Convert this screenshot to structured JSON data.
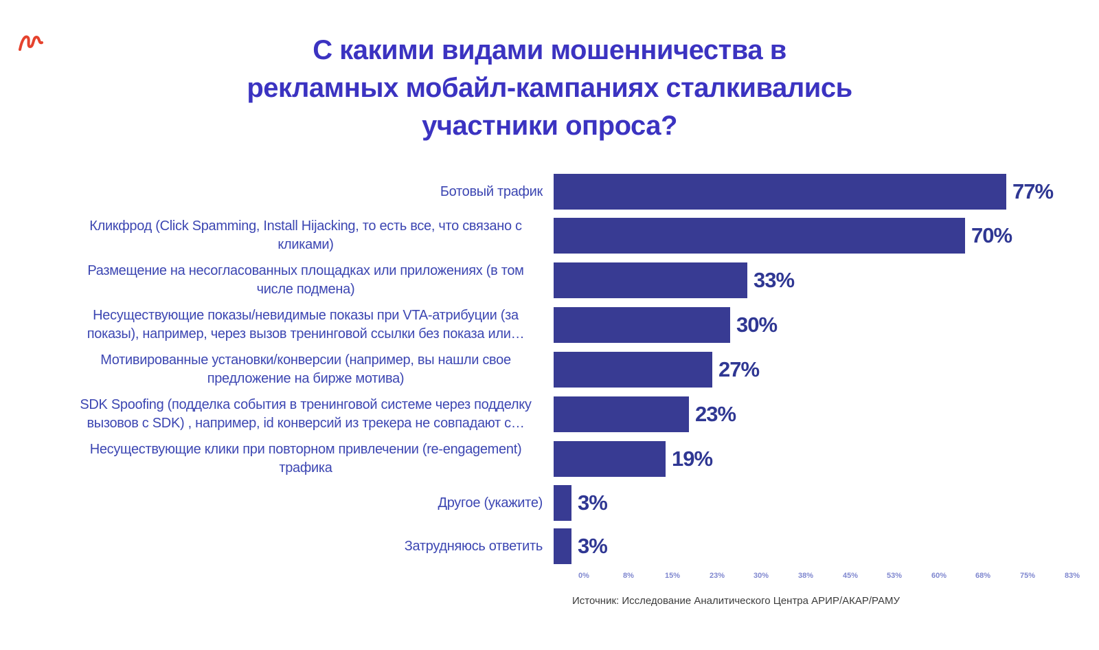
{
  "title": {
    "full": "С какими видами мошенничества в рекламных мобайл-кампаниях сталкивались участники опроса?",
    "lines": [
      "С какими видами мошенничества в",
      "рекламных мобайл-кампаниях сталкивались",
      "участники опроса?"
    ]
  },
  "source": "Источник: Исследование Аналитического Центра АРИР/АКАР/РАМУ",
  "colors": {
    "title": "#3b33c1",
    "bar_fill": "#383b93",
    "value_label": "#2f3793",
    "category_label": "#3c46b2",
    "axis_tick": "#7f87cf",
    "source_text": "#3b3b3b",
    "corner_mark": "#e5422d",
    "background": "#ffffff"
  },
  "chart_data": {
    "type": "bar",
    "orientation": "horizontal",
    "title": "С какими видами мошенничества в рекламных мобайл-кампаниях сталкивались участники опроса?",
    "categories": [
      "Ботовый трафик",
      "Кликфрод (Click Spamming, Install Hijacking, то есть все, что связано с кликами)",
      "Размещение на несогласованных площадках или приложениях (в том числе подмена)",
      "Несуществующие показы/невидимые показы при VTA-атрибуции (за показы), например, через вызов тренинговой ссылки без показа или…",
      "Мотивированные установки/конверсии (например, вы нашли свое предложение на бирже мотива)",
      "SDK Spoofing (подделка события в тренинговой системе через подделку вызовов с SDK) , например, id конверсий из трекера не совпадают с…",
      "Несуществующие клики при повторном привлечении (re-engagement) трафика",
      "Другое (укажите)",
      "Затрудняюсь ответить"
    ],
    "values": [
      77,
      70,
      33,
      30,
      27,
      23,
      19,
      3,
      3
    ],
    "value_labels": [
      "77%",
      "70%",
      "33%",
      "30%",
      "27%",
      "23%",
      "19%",
      "3%",
      "3%"
    ],
    "x_ticks": [
      "0%",
      "8%",
      "15%",
      "23%",
      "30%",
      "38%",
      "45%",
      "53%",
      "60%",
      "68%",
      "75%",
      "83%"
    ],
    "xlim": [
      0,
      83
    ],
    "grid": false,
    "legend": "none",
    "xlabel": "",
    "ylabel": ""
  }
}
